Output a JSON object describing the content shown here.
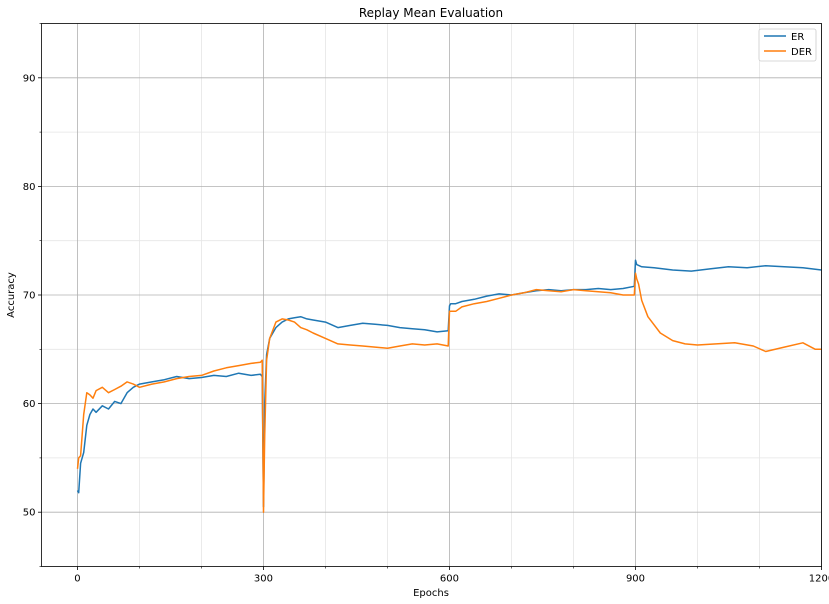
{
  "chart_data": {
    "type": "line",
    "title": "Replay Mean Evaluation",
    "xlabel": "Epochs",
    "ylabel": "Accuracy",
    "xlim": [
      -58,
      1200
    ],
    "ylim": [
      45,
      95
    ],
    "x_ticks": [
      0,
      300,
      600,
      900,
      1200
    ],
    "y_ticks": [
      50,
      60,
      70,
      80,
      90
    ],
    "x_minor_step": 100,
    "y_minor_step": 5,
    "grid": true,
    "legend_position": "top-right",
    "series": [
      {
        "name": "ER",
        "color": "#1f77b4",
        "x": [
          0,
          2,
          5,
          10,
          15,
          20,
          25,
          30,
          40,
          50,
          60,
          70,
          80,
          90,
          100,
          120,
          140,
          160,
          180,
          200,
          220,
          240,
          260,
          280,
          295,
          298,
          300,
          302,
          305,
          310,
          320,
          330,
          340,
          350,
          360,
          370,
          380,
          400,
          420,
          440,
          460,
          480,
          500,
          520,
          540,
          560,
          580,
          598,
          600,
          602,
          610,
          620,
          640,
          660,
          680,
          700,
          720,
          740,
          760,
          780,
          800,
          820,
          840,
          860,
          880,
          898,
          900,
          902,
          910,
          930,
          960,
          990,
          1020,
          1050,
          1080,
          1110,
          1140,
          1170,
          1200
        ],
        "y": [
          52.0,
          51.8,
          54.5,
          55.5,
          58.0,
          59.0,
          59.5,
          59.2,
          59.8,
          59.5,
          60.2,
          60.0,
          61.0,
          61.5,
          61.8,
          62.0,
          62.2,
          62.5,
          62.3,
          62.4,
          62.6,
          62.5,
          62.8,
          62.6,
          62.7,
          62.5,
          50.5,
          60.0,
          64.5,
          66.0,
          67.0,
          67.5,
          67.8,
          67.9,
          68.0,
          67.8,
          67.7,
          67.5,
          67.0,
          67.2,
          67.4,
          67.3,
          67.2,
          67.0,
          66.9,
          66.8,
          66.6,
          66.7,
          69.0,
          69.2,
          69.2,
          69.4,
          69.6,
          69.9,
          70.1,
          70.0,
          70.2,
          70.4,
          70.5,
          70.4,
          70.5,
          70.5,
          70.6,
          70.5,
          70.6,
          70.8,
          73.2,
          72.8,
          72.6,
          72.5,
          72.3,
          72.2,
          72.4,
          72.6,
          72.5,
          72.7,
          72.6,
          72.5,
          72.3
        ]
      },
      {
        "name": "DER",
        "color": "#ff7f0e",
        "x": [
          0,
          2,
          5,
          10,
          15,
          20,
          25,
          30,
          40,
          50,
          60,
          70,
          80,
          90,
          100,
          120,
          140,
          160,
          180,
          200,
          220,
          240,
          260,
          280,
          295,
          298,
          300,
          302,
          305,
          310,
          320,
          330,
          340,
          350,
          360,
          370,
          380,
          400,
          420,
          440,
          460,
          480,
          500,
          520,
          540,
          560,
          580,
          598,
          600,
          602,
          610,
          620,
          640,
          660,
          680,
          700,
          720,
          740,
          760,
          780,
          800,
          820,
          840,
          860,
          880,
          898,
          900,
          902,
          905,
          910,
          920,
          940,
          960,
          980,
          1000,
          1030,
          1060,
          1090,
          1110,
          1140,
          1170,
          1190,
          1200
        ],
        "y": [
          54.0,
          55.0,
          55.2,
          59.0,
          61.0,
          60.8,
          60.5,
          61.2,
          61.5,
          61.0,
          61.3,
          61.6,
          62.0,
          61.8,
          61.5,
          61.8,
          62.0,
          62.3,
          62.5,
          62.6,
          63.0,
          63.3,
          63.5,
          63.7,
          63.8,
          64.0,
          50.0,
          57.0,
          64.0,
          66.0,
          67.5,
          67.8,
          67.7,
          67.5,
          67.0,
          66.8,
          66.5,
          66.0,
          65.5,
          65.4,
          65.3,
          65.2,
          65.1,
          65.3,
          65.5,
          65.4,
          65.5,
          65.3,
          68.5,
          68.5,
          68.5,
          68.9,
          69.2,
          69.4,
          69.7,
          70.0,
          70.2,
          70.5,
          70.4,
          70.3,
          70.5,
          70.4,
          70.3,
          70.2,
          70.0,
          70.0,
          72.0,
          71.5,
          71.0,
          69.5,
          68.0,
          66.5,
          65.8,
          65.5,
          65.4,
          65.5,
          65.6,
          65.3,
          64.8,
          65.2,
          65.6,
          65.0,
          65.0
        ]
      }
    ]
  }
}
